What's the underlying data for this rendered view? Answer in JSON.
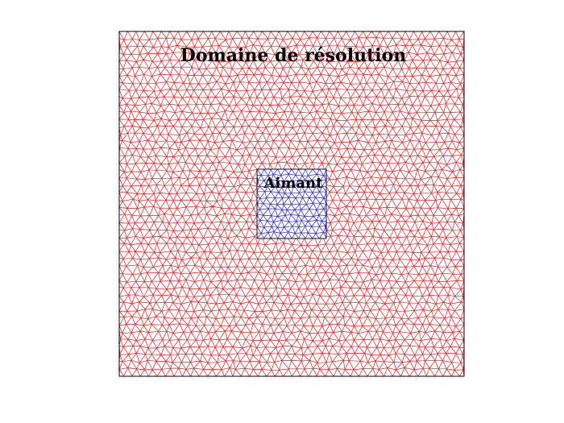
{
  "figure": {
    "domain_label": "Domaine de résolution",
    "magnet_label": "Aimant",
    "colors": {
      "domain_mesh": "#e41a1c",
      "magnet_mesh": "#1f1fd0",
      "frame": "#000000",
      "background": "#ffffff"
    }
  }
}
